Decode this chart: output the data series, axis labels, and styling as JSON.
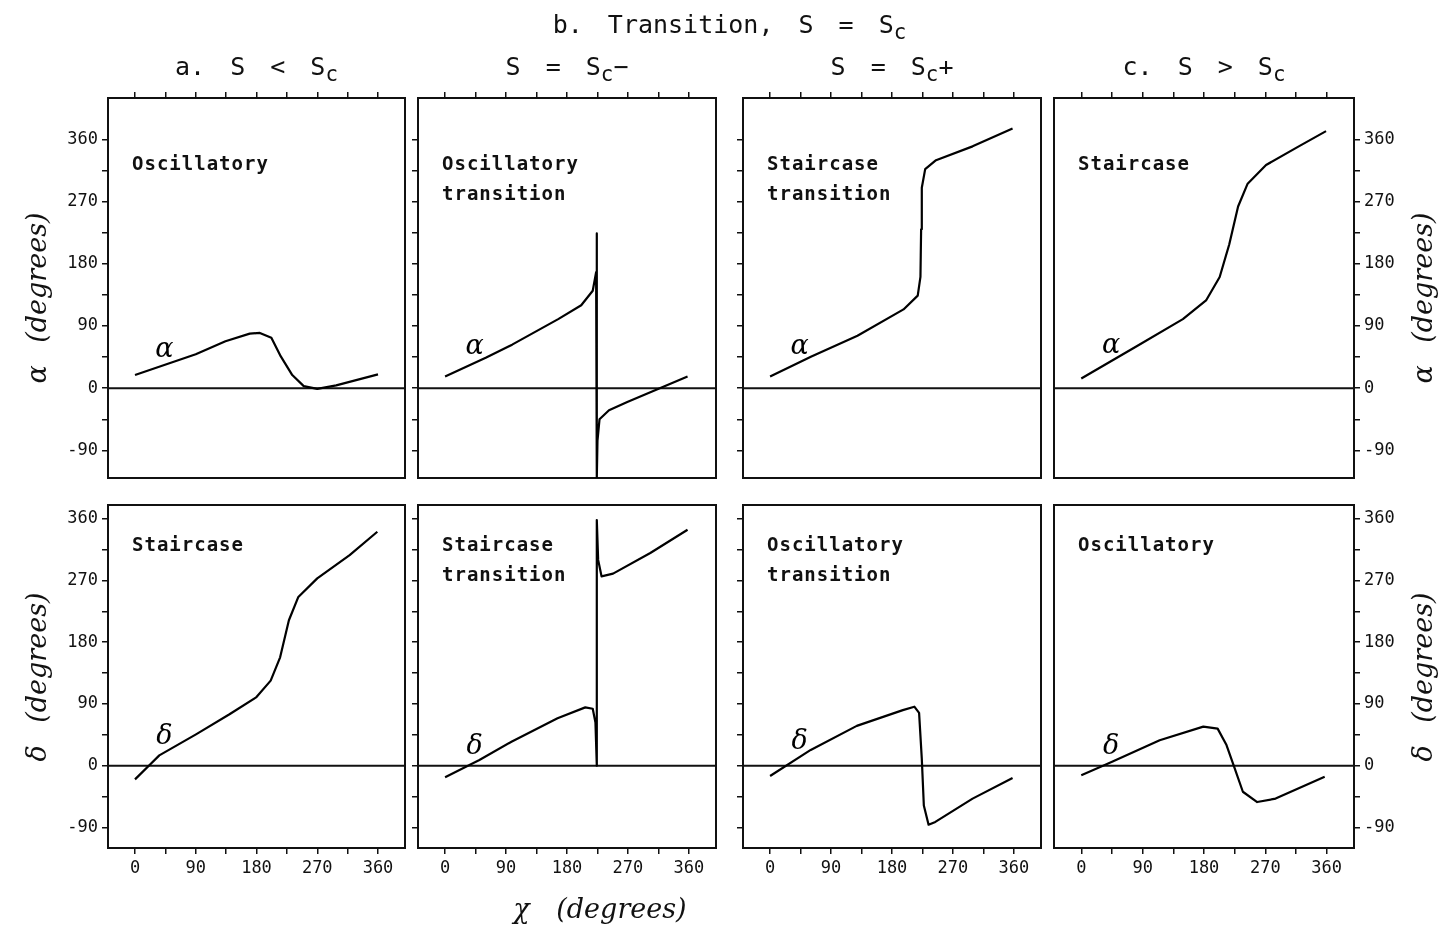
{
  "chart_data": [
    {
      "type": "line",
      "title": "a. S < S$_{c}$",
      "ylabel": "α (degrees)",
      "annotations": [
        "Oscillatory"
      ],
      "xlim": [
        -40,
        400
      ],
      "xticks": [
        0,
        {
          "value": 45,
          "label": null
        },
        90,
        {
          "value": 135,
          "label": null
        },
        180,
        {
          "value": 225,
          "label": null
        },
        270,
        {
          "value": 315,
          "label": null
        },
        360
      ],
      "ylim": [
        -130,
        420
      ],
      "yticks": [
        -90,
        {
          "value": -45,
          "label": null
        },
        0,
        {
          "value": 45,
          "label": null
        },
        90,
        {
          "value": 135,
          "label": null
        },
        180,
        {
          "value": 225,
          "label": null
        },
        270,
        {
          "value": 315,
          "label": null
        },
        360
      ],
      "tick_labels": "y",
      "ref_lines": [
        {
          "axis": "y",
          "value": 0
        }
      ],
      "legend": false,
      "series": [
        {
          "name": "α",
          "color": "#000000",
          "x": [
            0,
            90,
            134,
            170,
            185,
            202,
            216,
            233,
            250,
            270,
            298,
            360
          ],
          "values": [
            19,
            49,
            68,
            79,
            80,
            73,
            46,
            19,
            3,
            -1,
            4,
            20
          ]
        }
      ]
    },
    {
      "type": "line",
      "title": "b. Transition, S = S$_{c}$",
      "subtitle": "S = S$_{c}$−",
      "annotations": [
        "Oscillatory transition"
      ],
      "xlim": [
        -40,
        400
      ],
      "xticks": [
        0,
        {
          "value": 45,
          "label": null
        },
        90,
        {
          "value": 135,
          "label": null
        },
        180,
        {
          "value": 225,
          "label": null
        },
        270,
        {
          "value": 315,
          "label": null
        },
        360
      ],
      "ylim": [
        -130,
        420
      ],
      "yticks": [
        -90,
        {
          "value": -45,
          "label": null
        },
        0,
        {
          "value": 45,
          "label": null
        },
        90,
        {
          "value": 135,
          "label": null
        },
        180,
        {
          "value": 225,
          "label": null
        },
        270,
        {
          "value": 315,
          "label": null
        },
        360
      ],
      "tick_labels": false,
      "ref_lines": [
        {
          "axis": "y",
          "value": 0
        }
      ],
      "legend": false,
      "series": [
        {
          "name": "α",
          "color": "#000000",
          "x": [
            0,
            60,
            99,
            167,
            201,
            218,
            223,
            224,
            224,
            225,
            228,
            242,
            269,
            317,
            358
          ],
          "values": [
            17,
            44,
            63,
            100,
            120,
            141,
            168,
            224,
            -130,
            -76,
            -45,
            -32,
            -20,
            0,
            17
          ]
        }
      ]
    },
    {
      "type": "line",
      "subtitle": "S = S$_{c}$+",
      "annotations": [
        "Staircase transition"
      ],
      "xlim": [
        -40,
        400
      ],
      "xticks": [
        0,
        {
          "value": 45,
          "label": null
        },
        90,
        {
          "value": 135,
          "label": null
        },
        180,
        {
          "value": 225,
          "label": null
        },
        270,
        {
          "value": 315,
          "label": null
        },
        360
      ],
      "ylim": [
        -130,
        420
      ],
      "yticks": [
        -90,
        {
          "value": -45,
          "label": null
        },
        0,
        {
          "value": 45,
          "label": null
        },
        90,
        {
          "value": 135,
          "label": null
        },
        180,
        {
          "value": 225,
          "label": null
        },
        270,
        {
          "value": 315,
          "label": null
        },
        360
      ],
      "tick_labels": false,
      "ref_lines": [
        {
          "axis": "y",
          "value": 0
        }
      ],
      "legend": false,
      "series": [
        {
          "name": "α",
          "color": "#000000",
          "x": [
            0,
            61,
            129,
            197,
            218,
            222,
            223,
            224,
            229,
            245,
            299,
            358
          ],
          "values": [
            17,
            46,
            76,
            114,
            134,
            161,
            230,
            290,
            317,
            330,
            350,
            376
          ]
        }
      ]
    },
    {
      "type": "line",
      "title": "c. S > S$_{c}$",
      "ylabel": "α (degrees)",
      "annotations": [
        "Staircase"
      ],
      "xlim": [
        -40,
        400
      ],
      "xticks": [
        0,
        {
          "value": 45,
          "label": null
        },
        90,
        {
          "value": 135,
          "label": null
        },
        180,
        {
          "value": 225,
          "label": null
        },
        270,
        {
          "value": 315,
          "label": null
        },
        360
      ],
      "ylim": [
        -130,
        420
      ],
      "yticks": [
        -90,
        {
          "value": -45,
          "label": null
        },
        0,
        {
          "value": 45,
          "label": null
        },
        90,
        {
          "value": 135,
          "label": null
        },
        180,
        {
          "value": 225,
          "label": null
        },
        270,
        {
          "value": 315,
          "label": null
        },
        360
      ],
      "tick_labels": "y",
      "ref_lines": [
        {
          "axis": "y",
          "value": 0
        }
      ],
      "legend": false,
      "series": [
        {
          "name": "α",
          "color": "#000000",
          "x": [
            0,
            80,
            149,
            183,
            203,
            217,
            230,
            244,
            271,
            319,
            359
          ],
          "values": [
            14,
            60,
            100,
            127,
            161,
            208,
            263,
            296,
            323,
            350,
            372
          ]
        }
      ]
    },
    {
      "type": "line",
      "ylabel": "δ (degrees)",
      "annotations": [
        "Staircase"
      ],
      "xlim": [
        -40,
        400
      ],
      "xticks": [
        0,
        {
          "value": 45,
          "label": null
        },
        90,
        {
          "value": 135,
          "label": null
        },
        180,
        {
          "value": 225,
          "label": null
        },
        270,
        {
          "value": 315,
          "label": null
        },
        360
      ],
      "ylim": [
        -120,
        380
      ],
      "yticks": [
        -90,
        {
          "value": -45,
          "label": null
        },
        0,
        {
          "value": 45,
          "label": null
        },
        90,
        {
          "value": 135,
          "label": null
        },
        180,
        {
          "value": 225,
          "label": null
        },
        270,
        {
          "value": 315,
          "label": null
        },
        360
      ],
      "ref_lines": [
        {
          "axis": "y",
          "value": 0
        }
      ],
      "legend": false,
      "series": [
        {
          "name": "δ",
          "color": "#000000",
          "x": [
            0,
            36,
            91,
            140,
            180,
            201,
            215,
            228,
            242,
            270,
            318,
            359
          ],
          "values": [
            -20,
            15,
            46,
            75,
            100,
            124,
            158,
            212,
            246,
            273,
            307,
            341
          ]
        }
      ]
    },
    {
      "type": "line",
      "xlabel": "χ (degrees)",
      "annotations": [
        "Staircase transition"
      ],
      "xlim": [
        -40,
        400
      ],
      "xticks": [
        0,
        {
          "value": 45,
          "label": null
        },
        90,
        {
          "value": 135,
          "label": null
        },
        180,
        {
          "value": 225,
          "label": null
        },
        270,
        {
          "value": 315,
          "label": null
        },
        360
      ],
      "ylim": [
        -120,
        380
      ],
      "yticks": [
        -90,
        {
          "value": -45,
          "label": null
        },
        0,
        {
          "value": 45,
          "label": null
        },
        90,
        {
          "value": 135,
          "label": null
        },
        180,
        {
          "value": 225,
          "label": null
        },
        270,
        {
          "value": 315,
          "label": null
        },
        360
      ],
      "tick_labels": "x",
      "ref_lines": [
        {
          "axis": "y",
          "value": 0
        }
      ],
      "legend": false,
      "series": [
        {
          "name": "δ",
          "color": "#000000",
          "x": [
            0,
            50,
            98,
            166,
            207,
            218,
            222,
            224,
            224,
            226,
            231,
            248,
            303,
            358
          ],
          "values": [
            -17,
            8,
            35,
            69,
            85,
            83,
            63,
            0,
            358,
            300,
            276,
            280,
            310,
            344
          ]
        }
      ]
    },
    {
      "type": "line",
      "annotations": [
        "Oscillatory transition"
      ],
      "xlim": [
        -40,
        400
      ],
      "xticks": [
        0,
        {
          "value": 45,
          "label": null
        },
        90,
        {
          "value": 135,
          "label": null
        },
        180,
        {
          "value": 225,
          "label": null
        },
        270,
        {
          "value": 315,
          "label": null
        },
        360
      ],
      "ylim": [
        -120,
        380
      ],
      "yticks": [
        -90,
        {
          "value": -45,
          "label": null
        },
        0,
        {
          "value": 45,
          "label": null
        },
        90,
        {
          "value": 135,
          "label": null
        },
        180,
        {
          "value": 225,
          "label": null
        },
        270,
        {
          "value": 315,
          "label": null
        },
        360
      ],
      "tick_labels": "x",
      "ref_lines": [
        {
          "axis": "y",
          "value": 0
        }
      ],
      "legend": false,
      "series": [
        {
          "name": "δ",
          "color": "#000000",
          "x": [
            0,
            60,
            128,
            196,
            213,
            220,
            224,
            227,
            234,
            244,
            299,
            358
          ],
          "values": [
            -15,
            23,
            58,
            81,
            86,
            77,
            10,
            -58,
            -86,
            -82,
            -48,
            -18
          ]
        }
      ]
    },
    {
      "type": "line",
      "ylabel": "δ (degrees)",
      "annotations": [
        "Oscillatory"
      ],
      "xlim": [
        -40,
        400
      ],
      "xticks": [
        0,
        {
          "value": 45,
          "label": null
        },
        90,
        {
          "value": 135,
          "label": null
        },
        180,
        {
          "value": 225,
          "label": null
        },
        270,
        {
          "value": 315,
          "label": null
        },
        360
      ],
      "ylim": [
        -120,
        380
      ],
      "yticks": [
        -90,
        {
          "value": -45,
          "label": null
        },
        0,
        {
          "value": 45,
          "label": null
        },
        90,
        {
          "value": 135,
          "label": null
        },
        180,
        {
          "value": 225,
          "label": null
        },
        270,
        {
          "value": 315,
          "label": null
        },
        360
      ],
      "ref_lines": [
        {
          "axis": "y",
          "value": 0
        }
      ],
      "legend": false,
      "series": [
        {
          "name": "δ",
          "color": "#000000",
          "x": [
            0,
            46,
            115,
            179,
            200,
            213,
            224,
            237,
            258,
            285,
            357
          ],
          "values": [
            -14,
            6,
            37,
            57,
            54,
            30,
            -1,
            -38,
            -53,
            -48,
            -16
          ]
        }
      ]
    }
  ]
}
